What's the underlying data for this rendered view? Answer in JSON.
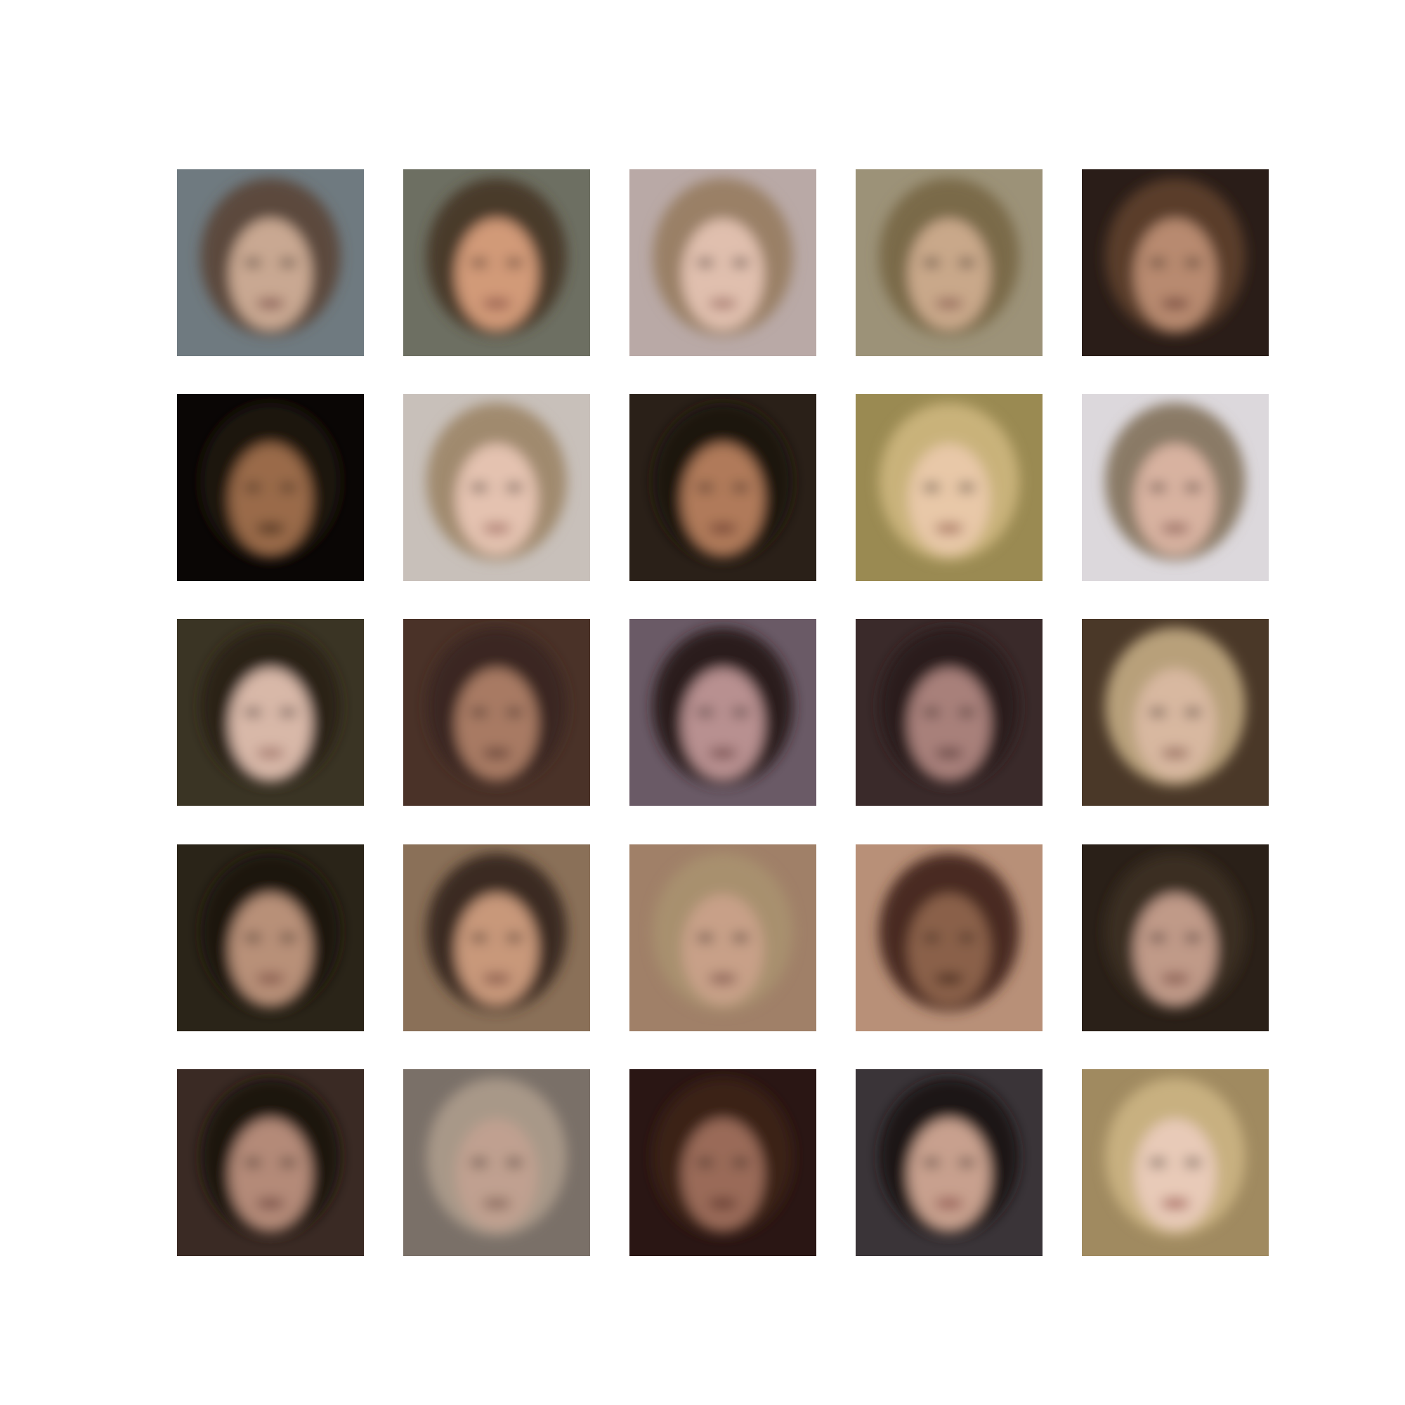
{
  "figure": {
    "rows": 5,
    "cols": 5,
    "background": "#ffffff"
  },
  "samples": [
    {
      "bg": "#6f7a80",
      "hair": "#5b4a3c",
      "skin": "#c9a892",
      "mouth": "#7a4b45"
    },
    {
      "bg": "#6d6f62",
      "hair": "#4a3a2c",
      "skin": "#d19a78",
      "mouth": "#8a4f45"
    },
    {
      "bg": "#b9a9a6",
      "hair": "#9a8066",
      "skin": "#e0bfae",
      "mouth": "#9a6a60"
    },
    {
      "bg": "#9c9278",
      "hair": "#7a6a48",
      "skin": "#c9a88a",
      "mouth": "#8a5a50"
    },
    {
      "bg": "#2a1d18",
      "hair": "#5a3e2a",
      "skin": "#b88a70",
      "mouth": "#6a3a34"
    },
    {
      "bg": "#0a0605",
      "hair": "#1e1410",
      "skin": "#9a6a48",
      "mouth": "#3a2218"
    },
    {
      "bg": "#c8c0ba",
      "hair": "#a08a6e",
      "skin": "#e4c2b0",
      "mouth": "#a06a60"
    },
    {
      "bg": "#2a2018",
      "hair": "#1e1610",
      "skin": "#b07a5a",
      "mouth": "#6a3a30"
    },
    {
      "bg": "#9a8a52",
      "hair": "#c9b27a",
      "skin": "#e8c8a8",
      "mouth": "#9a6050"
    },
    {
      "bg": "#dcd8dc",
      "hair": "#8a7a66",
      "skin": "#d8b2a0",
      "mouth": "#8a5a52"
    },
    {
      "bg": "#3a3424",
      "hair": "#2a2018",
      "skin": "#d8b8a8",
      "mouth": "#9a6a60"
    },
    {
      "bg": "#4a3228",
      "hair": "#3a2820",
      "skin": "#a87a64",
      "mouth": "#5a3a30"
    },
    {
      "bg": "#6a5a66",
      "hair": "#2a1a1a",
      "skin": "#b89090",
      "mouth": "#6a4040"
    },
    {
      "bg": "#3a2a2a",
      "hair": "#2a1e1e",
      "skin": "#a8807a",
      "mouth": "#5a3a38"
    },
    {
      "bg": "#4a3828",
      "hair": "#b8a07a",
      "skin": "#d8b8a0",
      "mouth": "#8a5a50"
    },
    {
      "bg": "#2a2418",
      "hair": "#1e1810",
      "skin": "#b89078",
      "mouth": "#7a4a40"
    },
    {
      "bg": "#8a7058",
      "hair": "#3a2a20",
      "skin": "#c8987a",
      "mouth": "#7a4a40"
    },
    {
      "bg": "#a08068",
      "hair": "#a8906e",
      "skin": "#c8a088",
      "mouth": "#7a5048"
    },
    {
      "bg": "#b89078",
      "hair": "#4a2a20",
      "skin": "#8a6048",
      "mouth": "#3a2218"
    },
    {
      "bg": "#2a2018",
      "hair": "#3a2e22",
      "skin": "#c09a88",
      "mouth": "#7a4a42"
    },
    {
      "bg": "#3a2a24",
      "hair": "#1e1410",
      "skin": "#b48a78",
      "mouth": "#6a3e38"
    },
    {
      "bg": "#7a7068",
      "hair": "#a89888",
      "skin": "#c0a090",
      "mouth": "#7a5a50"
    },
    {
      "bg": "#2a1614",
      "hair": "#3a2018",
      "skin": "#9a6a58",
      "mouth": "#5a3028"
    },
    {
      "bg": "#3a3438",
      "hair": "#1e1614",
      "skin": "#c8a08e",
      "mouth": "#8a4a44"
    },
    {
      "bg": "#a08a60",
      "hair": "#c8b080",
      "skin": "#e8cab8",
      "mouth": "#9a4a44"
    }
  ]
}
